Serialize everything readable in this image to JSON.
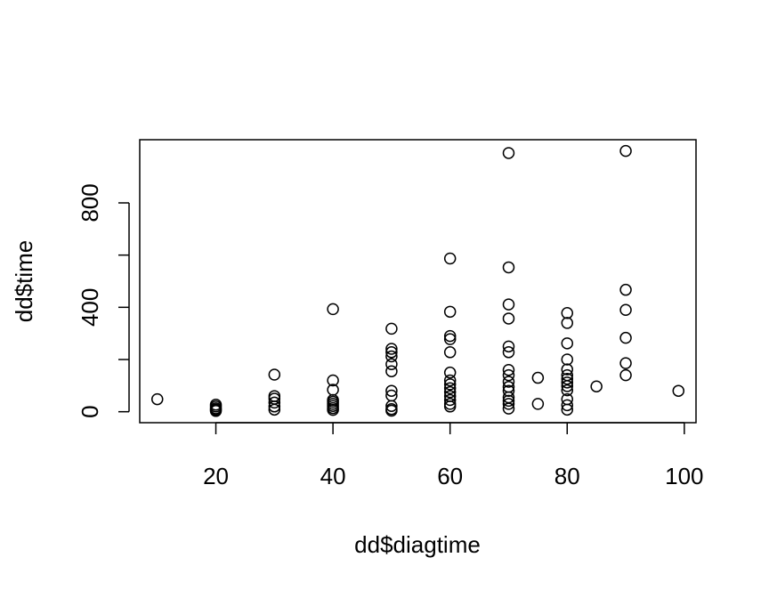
{
  "chart_data": {
    "type": "scatter",
    "xlabel": "dd$diagtime",
    "ylabel": "dd$time",
    "xlim": [
      7,
      102
    ],
    "ylim": [
      -42,
      1042
    ],
    "xticks": [
      20,
      40,
      60,
      80,
      100
    ],
    "yticks": [
      0,
      400,
      800
    ],
    "yticks_minor": [
      200,
      600
    ],
    "grid": false,
    "points": [
      {
        "x": 10,
        "y": 48
      },
      {
        "x": 20,
        "y": 27
      },
      {
        "x": 20,
        "y": 20
      },
      {
        "x": 20,
        "y": 13
      },
      {
        "x": 20,
        "y": 8
      },
      {
        "x": 20,
        "y": 3
      },
      {
        "x": 30,
        "y": 142
      },
      {
        "x": 30,
        "y": 60
      },
      {
        "x": 30,
        "y": 50
      },
      {
        "x": 30,
        "y": 35
      },
      {
        "x": 30,
        "y": 20
      },
      {
        "x": 30,
        "y": 8
      },
      {
        "x": 40,
        "y": 393
      },
      {
        "x": 40,
        "y": 120
      },
      {
        "x": 40,
        "y": 84
      },
      {
        "x": 40,
        "y": 45
      },
      {
        "x": 40,
        "y": 38
      },
      {
        "x": 40,
        "y": 30
      },
      {
        "x": 40,
        "y": 22
      },
      {
        "x": 40,
        "y": 14
      },
      {
        "x": 40,
        "y": 7
      },
      {
        "x": 50,
        "y": 318
      },
      {
        "x": 50,
        "y": 241
      },
      {
        "x": 50,
        "y": 228
      },
      {
        "x": 50,
        "y": 212
      },
      {
        "x": 50,
        "y": 182
      },
      {
        "x": 50,
        "y": 155
      },
      {
        "x": 50,
        "y": 80
      },
      {
        "x": 50,
        "y": 62
      },
      {
        "x": 50,
        "y": 22
      },
      {
        "x": 50,
        "y": 10
      },
      {
        "x": 50,
        "y": 4
      },
      {
        "x": 60,
        "y": 587
      },
      {
        "x": 60,
        "y": 383
      },
      {
        "x": 60,
        "y": 290
      },
      {
        "x": 60,
        "y": 278
      },
      {
        "x": 60,
        "y": 228
      },
      {
        "x": 60,
        "y": 150
      },
      {
        "x": 60,
        "y": 120
      },
      {
        "x": 60,
        "y": 105
      },
      {
        "x": 60,
        "y": 90
      },
      {
        "x": 60,
        "y": 75
      },
      {
        "x": 60,
        "y": 60
      },
      {
        "x": 60,
        "y": 45
      },
      {
        "x": 60,
        "y": 30
      },
      {
        "x": 60,
        "y": 20
      },
      {
        "x": 70,
        "y": 991
      },
      {
        "x": 70,
        "y": 553
      },
      {
        "x": 70,
        "y": 411
      },
      {
        "x": 70,
        "y": 357
      },
      {
        "x": 70,
        "y": 250
      },
      {
        "x": 70,
        "y": 228
      },
      {
        "x": 70,
        "y": 160
      },
      {
        "x": 70,
        "y": 140
      },
      {
        "x": 70,
        "y": 115
      },
      {
        "x": 70,
        "y": 95
      },
      {
        "x": 70,
        "y": 80
      },
      {
        "x": 70,
        "y": 55
      },
      {
        "x": 70,
        "y": 42
      },
      {
        "x": 70,
        "y": 30
      },
      {
        "x": 70,
        "y": 12
      },
      {
        "x": 75,
        "y": 130
      },
      {
        "x": 75,
        "y": 30
      },
      {
        "x": 80,
        "y": 378
      },
      {
        "x": 80,
        "y": 340
      },
      {
        "x": 80,
        "y": 262
      },
      {
        "x": 80,
        "y": 200
      },
      {
        "x": 80,
        "y": 162
      },
      {
        "x": 80,
        "y": 140
      },
      {
        "x": 80,
        "y": 126
      },
      {
        "x": 80,
        "y": 112
      },
      {
        "x": 80,
        "y": 98
      },
      {
        "x": 80,
        "y": 82
      },
      {
        "x": 80,
        "y": 48
      },
      {
        "x": 80,
        "y": 25
      },
      {
        "x": 80,
        "y": 8
      },
      {
        "x": 85,
        "y": 97
      },
      {
        "x": 90,
        "y": 999
      },
      {
        "x": 90,
        "y": 467
      },
      {
        "x": 90,
        "y": 390
      },
      {
        "x": 90,
        "y": 283
      },
      {
        "x": 90,
        "y": 186
      },
      {
        "x": 90,
        "y": 140
      },
      {
        "x": 99,
        "y": 80
      }
    ]
  }
}
